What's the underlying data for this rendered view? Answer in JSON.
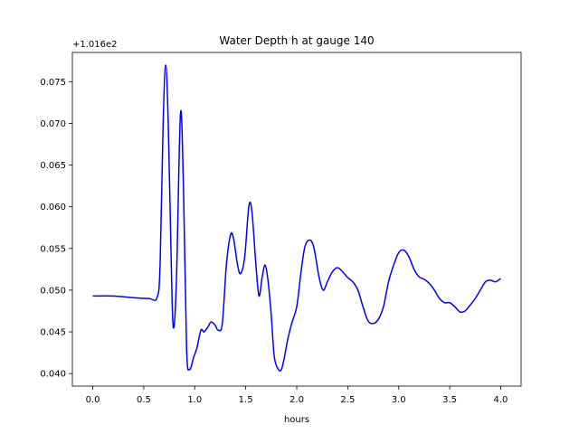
{
  "chart_data": {
    "type": "line",
    "title": "Water Depth h at gauge 140",
    "xlabel": "hours",
    "ylabel": "",
    "offset_label": "+1.016e2",
    "xlim": [
      -0.2,
      4.2
    ],
    "ylim": [
      0.0385,
      0.0785
    ],
    "x_ticks": [
      {
        "value": 0.0,
        "label": "0.0"
      },
      {
        "value": 0.5,
        "label": "0.5"
      },
      {
        "value": 1.0,
        "label": "1.0"
      },
      {
        "value": 1.5,
        "label": "1.5"
      },
      {
        "value": 2.0,
        "label": "2.0"
      },
      {
        "value": 2.5,
        "label": "2.5"
      },
      {
        "value": 3.0,
        "label": "3.0"
      },
      {
        "value": 3.5,
        "label": "3.5"
      },
      {
        "value": 4.0,
        "label": "4.0"
      }
    ],
    "y_ticks": [
      {
        "value": 0.04,
        "label": "0.040"
      },
      {
        "value": 0.045,
        "label": "0.045"
      },
      {
        "value": 0.05,
        "label": "0.050"
      },
      {
        "value": 0.055,
        "label": "0.055"
      },
      {
        "value": 0.06,
        "label": "0.060"
      },
      {
        "value": 0.065,
        "label": "0.065"
      },
      {
        "value": 0.07,
        "label": "0.070"
      },
      {
        "value": 0.075,
        "label": "0.075"
      }
    ],
    "grid": false,
    "series": [
      {
        "color": "#0000ff",
        "x": [
          0.0,
          0.2,
          0.4,
          0.55,
          0.63,
          0.66,
          0.69,
          0.715,
          0.74,
          0.77,
          0.79,
          0.82,
          0.86,
          0.89,
          0.92,
          0.95,
          0.99,
          1.02,
          1.06,
          1.09,
          1.13,
          1.16,
          1.2,
          1.23,
          1.27,
          1.31,
          1.35,
          1.38,
          1.42,
          1.45,
          1.49,
          1.53,
          1.56,
          1.6,
          1.63,
          1.66,
          1.69,
          1.72,
          1.75,
          1.78,
          1.82,
          1.85,
          1.88,
          1.91,
          1.95,
          2.0,
          2.04,
          2.08,
          2.13,
          2.17,
          2.22,
          2.26,
          2.3,
          2.35,
          2.4,
          2.45,
          2.5,
          2.55,
          2.6,
          2.65,
          2.7,
          2.75,
          2.8,
          2.85,
          2.9,
          2.95,
          3.0,
          3.05,
          3.1,
          3.15,
          3.2,
          3.25,
          3.3,
          3.35,
          3.4,
          3.45,
          3.5,
          3.55,
          3.6,
          3.65,
          3.7,
          3.75,
          3.8,
          3.85,
          3.9,
          3.95,
          4.0
        ],
        "y": [
          0.0493,
          0.0493,
          0.0491,
          0.049,
          0.0491,
          0.053,
          0.07,
          0.077,
          0.07,
          0.053,
          0.0455,
          0.051,
          0.0712,
          0.062,
          0.043,
          0.0405,
          0.042,
          0.043,
          0.0452,
          0.045,
          0.0456,
          0.0462,
          0.0458,
          0.0452,
          0.046,
          0.053,
          0.0566,
          0.0562,
          0.053,
          0.052,
          0.054,
          0.06,
          0.0595,
          0.053,
          0.0493,
          0.0515,
          0.053,
          0.051,
          0.047,
          0.042,
          0.0405,
          0.0405,
          0.042,
          0.044,
          0.046,
          0.048,
          0.052,
          0.0552,
          0.056,
          0.055,
          0.0515,
          0.05,
          0.051,
          0.0522,
          0.0527,
          0.0522,
          0.0515,
          0.051,
          0.05,
          0.048,
          0.0463,
          0.046,
          0.0465,
          0.048,
          0.051,
          0.053,
          0.0545,
          0.0548,
          0.054,
          0.0525,
          0.0516,
          0.0513,
          0.0508,
          0.05,
          0.049,
          0.0485,
          0.0485,
          0.048,
          0.0474,
          0.0475,
          0.0482,
          0.049,
          0.05,
          0.051,
          0.0512,
          0.051,
          0.0514
        ]
      }
    ]
  }
}
